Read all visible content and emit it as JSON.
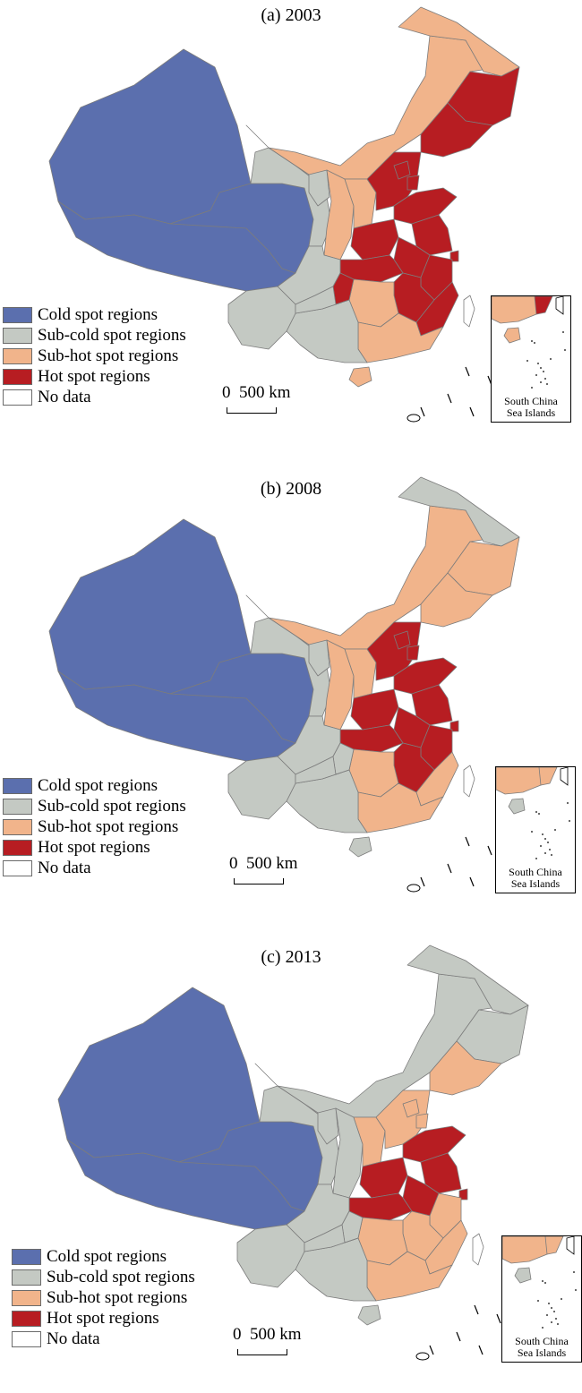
{
  "legend": {
    "cold": "Cold spot regions",
    "subcold": "Sub-cold spot regions",
    "subhot": "Sub-hot spot regions",
    "hot": "Hot spot regions",
    "nodata": "No data"
  },
  "colors": {
    "cold": "#5b6fae",
    "subcold": "#c4c9c3",
    "subhot": "#f1b48b",
    "hot": "#b71d22",
    "nodata": "#ffffff"
  },
  "scale_label": "0  500 km",
  "inset_label_line1": "South China",
  "inset_label_line2": "Sea Islands",
  "panels": [
    {
      "title": "(a) 2003",
      "classes": {
        "xinjiang": "cold",
        "tibet": "cold",
        "qinghai": "cold",
        "gansu": "subcold",
        "neimenggu": "subhot",
        "heilongjiang": "subhot",
        "jilin": "hot",
        "liaoning": "hot",
        "ningxia": "subcold",
        "shaanxi": "subhot",
        "shanxi": "subhot",
        "hebei": "hot",
        "beijing": "hot",
        "tianjin": "hot",
        "shandong": "hot",
        "henan": "hot",
        "jiangsu": "hot",
        "shanghai": "hot",
        "anhui": "hot",
        "hubei": "hot",
        "zhejiang": "hot",
        "jiangxi": "hot",
        "hunan": "subhot",
        "fujian": "hot",
        "guangdong": "subhot",
        "guangxi": "subcold",
        "hainan": "subhot",
        "sichuan": "subcold",
        "chongqing": "hot",
        "yunnan": "subcold",
        "guizhou": "subcold",
        "taiwan": "nodata"
      }
    },
    {
      "title": "(b) 2008",
      "classes": {
        "xinjiang": "cold",
        "tibet": "cold",
        "qinghai": "cold",
        "gansu": "subcold",
        "neimenggu": "subhot",
        "heilongjiang": "subcold",
        "jilin": "subhot",
        "liaoning": "subhot",
        "ningxia": "subcold",
        "shaanxi": "subhot",
        "shanxi": "subhot",
        "hebei": "hot",
        "beijing": "hot",
        "tianjin": "hot",
        "shandong": "hot",
        "henan": "hot",
        "jiangsu": "hot",
        "shanghai": "hot",
        "anhui": "hot",
        "hubei": "hot",
        "zhejiang": "hot",
        "jiangxi": "hot",
        "hunan": "subhot",
        "fujian": "subhot",
        "guangdong": "subhot",
        "guangxi": "subcold",
        "hainan": "subcold",
        "sichuan": "subcold",
        "chongqing": "subcold",
        "yunnan": "subcold",
        "guizhou": "subcold",
        "taiwan": "nodata"
      }
    },
    {
      "title": "(c) 2013",
      "classes": {
        "xinjiang": "cold",
        "tibet": "cold",
        "qinghai": "cold",
        "gansu": "subcold",
        "neimenggu": "subcold",
        "heilongjiang": "subcold",
        "jilin": "subcold",
        "liaoning": "subhot",
        "ningxia": "subcold",
        "shaanxi": "subcold",
        "shanxi": "subhot",
        "hebei": "subhot",
        "beijing": "subhot",
        "tianjin": "subhot",
        "shandong": "hot",
        "henan": "hot",
        "jiangsu": "hot",
        "shanghai": "hot",
        "anhui": "hot",
        "hubei": "hot",
        "zhejiang": "subhot",
        "jiangxi": "subhot",
        "hunan": "subhot",
        "fujian": "subhot",
        "guangdong": "subhot",
        "guangxi": "subcold",
        "hainan": "subcold",
        "sichuan": "subcold",
        "chongqing": "subcold",
        "yunnan": "subcold",
        "guizhou": "subcold",
        "taiwan": "nodata"
      }
    }
  ]
}
